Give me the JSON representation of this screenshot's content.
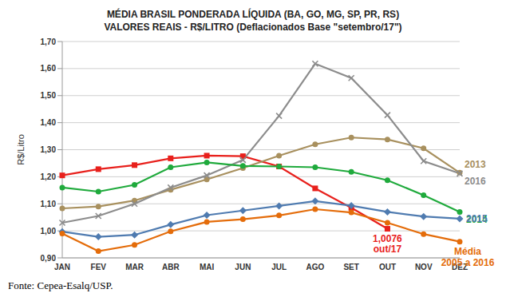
{
  "chart_data": {
    "type": "line",
    "title": "MÉDIA BRASIL PONDERADA LÍQUIDA (BA, GO, MG, SP, PR, RS)",
    "subtitle": "VALORES REAIS - R$/LITRO (Deflacionados Base \"setembro/17\")",
    "y_label": "R$/Litro",
    "source": "Fonte: Cepea-Esalq/USP.",
    "categories": [
      "JAN",
      "FEV",
      "MAR",
      "ABR",
      "MAI",
      "JUN",
      "JUL",
      "AGO",
      "SET",
      "OUT",
      "NOV",
      "DEZ"
    ],
    "series": [
      {
        "color": "#e8201c",
        "marker": "square",
        "values": [
          1.205,
          1.228,
          1.243,
          1.268,
          1.278,
          1.276,
          1.238,
          1.157,
          1.085,
          1.0076,
          null,
          null
        ]
      },
      {
        "name": "2013",
        "color": "#a8905e",
        "marker": "circle",
        "values": [
          1.083,
          1.09,
          1.112,
          1.152,
          1.19,
          1.232,
          1.278,
          1.32,
          1.345,
          1.338,
          1.305,
          1.215
        ]
      },
      {
        "name": "2016",
        "color": "#8c8c8c",
        "marker": "x",
        "values": [
          1.03,
          1.055,
          1.1,
          1.16,
          1.205,
          1.262,
          1.425,
          1.618,
          1.565,
          1.428,
          1.258,
          1.212
        ]
      },
      {
        "name": "2014",
        "color": "#1faa3c",
        "marker": "circle",
        "values": [
          1.16,
          1.145,
          1.17,
          1.235,
          1.253,
          1.24,
          1.238,
          1.235,
          1.218,
          1.187,
          1.132,
          1.07
        ]
      },
      {
        "name": "2015",
        "color": "#4f7bb0",
        "marker": "diamond",
        "values": [
          0.997,
          0.978,
          0.985,
          1.023,
          1.058,
          1.075,
          1.092,
          1.11,
          1.093,
          1.07,
          1.053,
          1.045
        ]
      },
      {
        "name": "Média 2005 a 2016",
        "color": "#e46c0a",
        "marker": "circle",
        "values": [
          0.99,
          0.925,
          0.948,
          0.998,
          1.033,
          1.043,
          1.057,
          1.08,
          1.068,
          1.03,
          0.988,
          0.96
        ]
      }
    ],
    "annotations": [
      {
        "texts": [
          "1,0076",
          "out/17"
        ],
        "x": "OUT",
        "y": 1.0076,
        "color": "#e8201c"
      }
    ],
    "ylim": [
      0.9,
      1.7
    ],
    "yticks": [
      {
        "value": 0.9,
        "label": "0,90"
      },
      {
        "value": 1.0,
        "label": "1,00"
      },
      {
        "value": 1.1,
        "label": "1,10"
      },
      {
        "value": 1.2,
        "label": "1,20"
      },
      {
        "value": 1.3,
        "label": "1,30"
      },
      {
        "value": 1.4,
        "label": "1,40"
      },
      {
        "value": 1.5,
        "label": "1,50"
      },
      {
        "value": 1.6,
        "label": "1,60"
      },
      {
        "value": 1.7,
        "label": "1,70"
      }
    ],
    "grid": true
  }
}
